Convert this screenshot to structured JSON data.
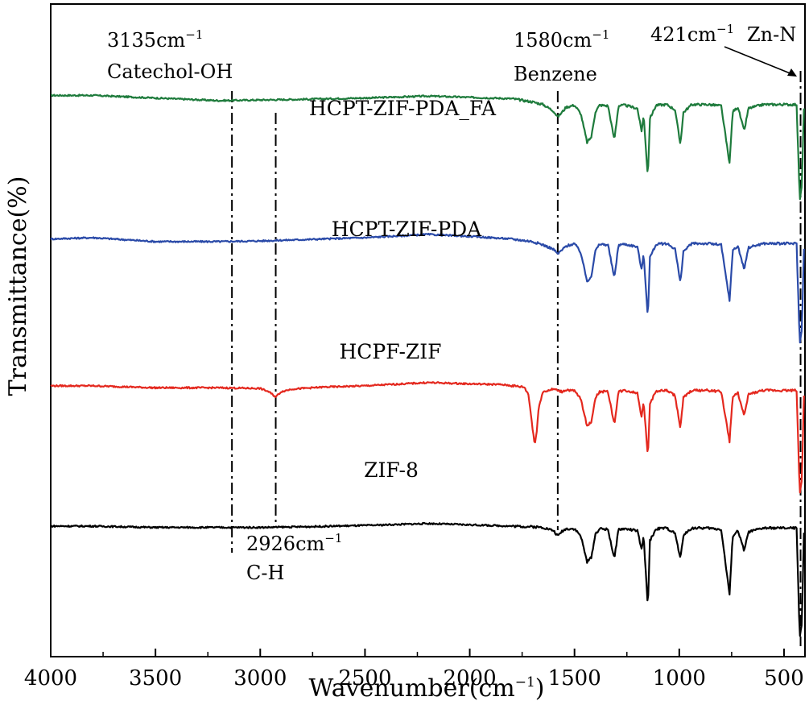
{
  "chart_data": {
    "type": "line",
    "title": "",
    "xlabel": "Wavenumber",
    "xlabel_unit": "cm",
    "xlabel_unit_exp": "−1",
    "ylabel": "Transmittance(%)",
    "xlim": [
      4000,
      400
    ],
    "x_reversed": true,
    "x_ticks": [
      4000,
      3500,
      3000,
      2500,
      2000,
      1500,
      1000,
      500
    ],
    "y_ticks": [],
    "grid": false,
    "series": [
      {
        "name": "HCPT-ZIF-PDA_FA",
        "color": "#1e7b3c",
        "baseline": 86,
        "label_x": 2650,
        "points": [
          [
            4000,
            86
          ],
          [
            3800,
            86
          ],
          [
            3500,
            85.6
          ],
          [
            3200,
            85.2
          ],
          [
            3000,
            85.3
          ],
          [
            2800,
            85.4
          ],
          [
            2500,
            85.6
          ],
          [
            2200,
            85.9
          ],
          [
            2000,
            85.7
          ],
          [
            1800,
            85.5
          ],
          [
            1700,
            85
          ],
          [
            1650,
            84.6
          ],
          [
            1600,
            83.6
          ],
          [
            1580,
            82.7
          ],
          [
            1560,
            83.4
          ],
          [
            1540,
            84.2
          ],
          [
            1500,
            84.5
          ],
          [
            1470,
            83.2
          ],
          [
            1440,
            78.8
          ],
          [
            1420,
            79.6
          ],
          [
            1400,
            83.5
          ],
          [
            1380,
            84.5
          ],
          [
            1340,
            84.4
          ],
          [
            1310,
            79.2
          ],
          [
            1290,
            84.4
          ],
          [
            1260,
            84.5
          ],
          [
            1200,
            84
          ],
          [
            1180,
            80.5
          ],
          [
            1170,
            83
          ],
          [
            1150,
            73.5
          ],
          [
            1140,
            82.5
          ],
          [
            1110,
            84.5
          ],
          [
            1060,
            84.6
          ],
          [
            1020,
            83.8
          ],
          [
            995,
            78.5
          ],
          [
            980,
            83.4
          ],
          [
            940,
            84.6
          ],
          [
            860,
            84.6
          ],
          [
            800,
            84.4
          ],
          [
            760,
            75.5
          ],
          [
            745,
            83.5
          ],
          [
            720,
            84.2
          ],
          [
            690,
            80.5
          ],
          [
            670,
            84
          ],
          [
            600,
            84.6
          ],
          [
            500,
            84.6
          ],
          [
            440,
            84.6
          ],
          [
            425,
            70
          ],
          [
            415,
            72
          ],
          [
            405,
            84
          ]
        ]
      },
      {
        "name": "HCPT-ZIF-PDA",
        "color": "#2a4aa8",
        "baseline": 64,
        "label_x": 2480,
        "points": [
          [
            4000,
            64
          ],
          [
            3800,
            64.2
          ],
          [
            3500,
            63.6
          ],
          [
            3200,
            63.6
          ],
          [
            3000,
            63.7
          ],
          [
            2800,
            63.9
          ],
          [
            2500,
            64.2
          ],
          [
            2200,
            64.7
          ],
          [
            2000,
            64.4
          ],
          [
            1800,
            64
          ],
          [
            1700,
            63.6
          ],
          [
            1650,
            63.1
          ],
          [
            1600,
            62.4
          ],
          [
            1580,
            61.7
          ],
          [
            1560,
            62.3
          ],
          [
            1540,
            62.9
          ],
          [
            1500,
            63.3
          ],
          [
            1470,
            61.9
          ],
          [
            1440,
            57.5
          ],
          [
            1420,
            58.3
          ],
          [
            1400,
            62.2
          ],
          [
            1380,
            63.2
          ],
          [
            1340,
            63.1
          ],
          [
            1310,
            58
          ],
          [
            1290,
            63.1
          ],
          [
            1260,
            63.2
          ],
          [
            1200,
            62.8
          ],
          [
            1180,
            59.3
          ],
          [
            1170,
            61.7
          ],
          [
            1150,
            52
          ],
          [
            1140,
            61.2
          ],
          [
            1110,
            63.2
          ],
          [
            1060,
            63.3
          ],
          [
            1020,
            62.5
          ],
          [
            995,
            57.3
          ],
          [
            980,
            62.1
          ],
          [
            940,
            63.3
          ],
          [
            860,
            63.3
          ],
          [
            800,
            63.1
          ],
          [
            760,
            54.5
          ],
          [
            745,
            62.2
          ],
          [
            720,
            62.9
          ],
          [
            690,
            59.3
          ],
          [
            670,
            62.7
          ],
          [
            600,
            63.3
          ],
          [
            500,
            63.3
          ],
          [
            440,
            63.3
          ],
          [
            425,
            48
          ],
          [
            415,
            50
          ],
          [
            405,
            62.5
          ]
        ]
      },
      {
        "name": "HCPF-ZIF",
        "color": "#e4281e",
        "baseline": 41.5,
        "label_x": 2250,
        "points": [
          [
            4000,
            41.5
          ],
          [
            3800,
            41.5
          ],
          [
            3500,
            41.2
          ],
          [
            3200,
            41.2
          ],
          [
            3000,
            41.1
          ],
          [
            2960,
            40.6
          ],
          [
            2926,
            39.8
          ],
          [
            2900,
            40.6
          ],
          [
            2850,
            41
          ],
          [
            2700,
            41.3
          ],
          [
            2500,
            41.5
          ],
          [
            2200,
            42
          ],
          [
            2000,
            41.8
          ],
          [
            1850,
            41.7
          ],
          [
            1740,
            41.3
          ],
          [
            1720,
            40.2
          ],
          [
            1700,
            35
          ],
          [
            1690,
            32.5
          ],
          [
            1680,
            34.5
          ],
          [
            1670,
            38.5
          ],
          [
            1650,
            40.6
          ],
          [
            1600,
            41
          ],
          [
            1560,
            40.6
          ],
          [
            1540,
            40.9
          ],
          [
            1500,
            40.7
          ],
          [
            1470,
            39.5
          ],
          [
            1440,
            35.3
          ],
          [
            1420,
            36
          ],
          [
            1400,
            39.7
          ],
          [
            1380,
            40.6
          ],
          [
            1340,
            40.6
          ],
          [
            1310,
            35.6
          ],
          [
            1290,
            40.6
          ],
          [
            1260,
            40.8
          ],
          [
            1200,
            40.4
          ],
          [
            1180,
            36.8
          ],
          [
            1170,
            39.2
          ],
          [
            1150,
            30.5
          ],
          [
            1140,
            38.8
          ],
          [
            1110,
            40.7
          ],
          [
            1060,
            40.8
          ],
          [
            1020,
            40
          ],
          [
            995,
            35
          ],
          [
            980,
            39.7
          ],
          [
            940,
            40.8
          ],
          [
            860,
            40.8
          ],
          [
            800,
            40.6
          ],
          [
            760,
            33
          ],
          [
            745,
            39.8
          ],
          [
            720,
            40.4
          ],
          [
            690,
            36.8
          ],
          [
            670,
            40.2
          ],
          [
            600,
            40.8
          ],
          [
            500,
            40.8
          ],
          [
            440,
            40.8
          ],
          [
            425,
            25
          ],
          [
            415,
            27
          ],
          [
            405,
            40
          ]
        ]
      },
      {
        "name": "ZIF-8",
        "color": "#000000",
        "baseline": 20,
        "label_x": 2480,
        "points": [
          [
            4000,
            20
          ],
          [
            3800,
            20
          ],
          [
            3500,
            19.8
          ],
          [
            3200,
            19.8
          ],
          [
            3000,
            19.8
          ],
          [
            2800,
            19.9
          ],
          [
            2500,
            20.1
          ],
          [
            2200,
            20.4
          ],
          [
            2000,
            20.2
          ],
          [
            1800,
            20
          ],
          [
            1700,
            19.9
          ],
          [
            1650,
            19.8
          ],
          [
            1600,
            19.3
          ],
          [
            1580,
            18.5
          ],
          [
            1560,
            19.2
          ],
          [
            1540,
            19.6
          ],
          [
            1500,
            19.6
          ],
          [
            1470,
            18.5
          ],
          [
            1440,
            14.5
          ],
          [
            1420,
            15.2
          ],
          [
            1400,
            18.8
          ],
          [
            1380,
            19.6
          ],
          [
            1340,
            19.5
          ],
          [
            1310,
            15
          ],
          [
            1290,
            19.5
          ],
          [
            1260,
            19.6
          ],
          [
            1200,
            19.3
          ],
          [
            1180,
            16.4
          ],
          [
            1170,
            18.5
          ],
          [
            1150,
            7.5
          ],
          [
            1140,
            17.8
          ],
          [
            1110,
            19.6
          ],
          [
            1060,
            19.7
          ],
          [
            1020,
            18.9
          ],
          [
            995,
            15
          ],
          [
            980,
            18.6
          ],
          [
            940,
            19.7
          ],
          [
            860,
            19.7
          ],
          [
            800,
            19.5
          ],
          [
            760,
            9.5
          ],
          [
            745,
            18.5
          ],
          [
            720,
            19.3
          ],
          [
            690,
            16.2
          ],
          [
            670,
            19.1
          ],
          [
            600,
            19.7
          ],
          [
            500,
            19.7
          ],
          [
            440,
            19.7
          ],
          [
            425,
            3
          ],
          [
            415,
            5
          ],
          [
            405,
            19
          ]
        ]
      }
    ],
    "reference_lines": [
      {
        "x": 3135,
        "label_value": "3135",
        "label_unit": "cm",
        "label_exp": "−1",
        "label_group": "Catechol-OH",
        "label_pos": "top"
      },
      {
        "x": 2926,
        "label_value": "2926",
        "label_unit": "cm",
        "label_exp": "−1",
        "label_group": "C-H",
        "label_pos": "bottom"
      },
      {
        "x": 1580,
        "label_value": "1580",
        "label_unit": "cm",
        "label_exp": "−1",
        "label_group": "Benzene",
        "label_pos": "top"
      },
      {
        "x": 421,
        "label_value": "421",
        "label_unit": "cm",
        "label_exp": "−1",
        "label_group": "Zn-N",
        "label_pos": "top-right"
      }
    ]
  }
}
